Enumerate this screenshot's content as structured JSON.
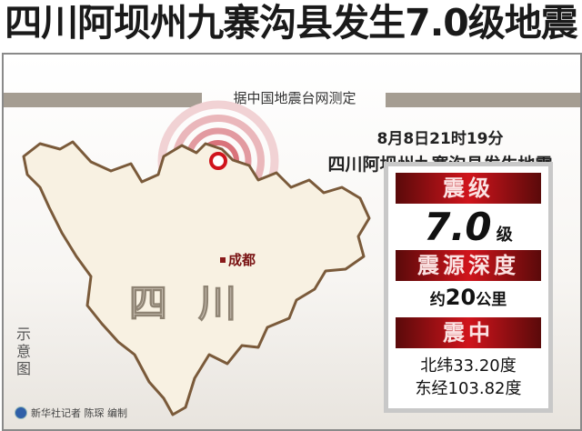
{
  "title": "四川阿坝州九寨沟县发生7.0级地震",
  "source": "据中国地震台网测定",
  "time": "8月8日21时19分",
  "place": "四川阿坝州九寨沟县发生地震",
  "map": {
    "province_label": "四川",
    "city_label": "成都",
    "legend": "示意图",
    "epicenter_color": "#d0141c",
    "province_fill": "#f8f1e2",
    "border_color": "#7a5a3a"
  },
  "panel": {
    "magnitude_header": "震级",
    "magnitude_value": "7.0",
    "magnitude_unit": "级",
    "depth_header": "震源深度",
    "depth_prefix": "约",
    "depth_value": "20",
    "depth_unit": "公里",
    "epicenter_header": "震中",
    "latitude": "北纬33.20度",
    "longitude": "东经103.82度"
  },
  "credit": "新华社记者 陈琛 编制"
}
